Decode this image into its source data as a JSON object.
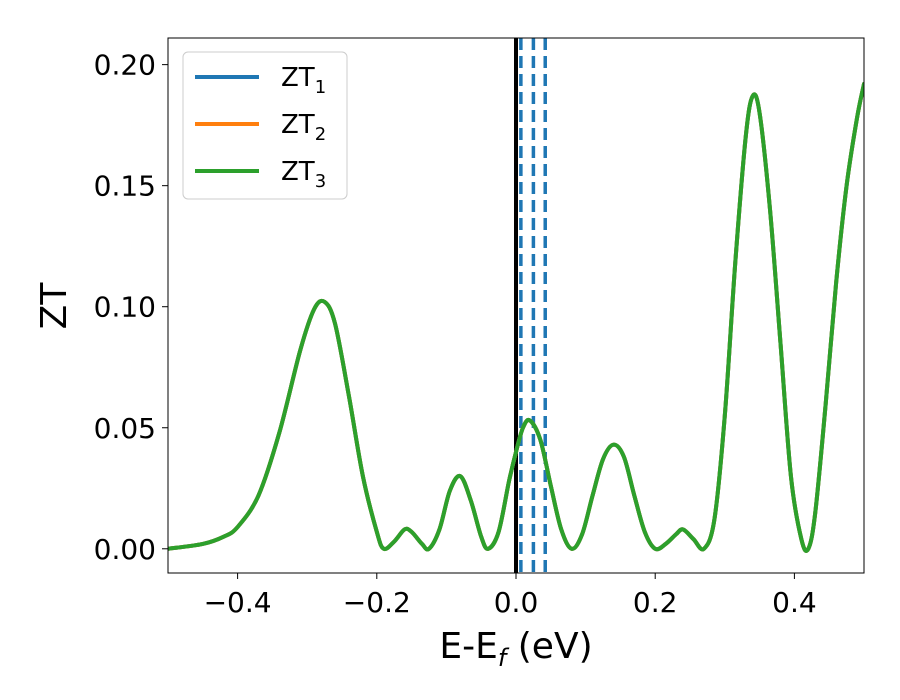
{
  "chart_data": {
    "type": "line",
    "xlabel": "E-E_f (eV)",
    "xlabel_parts": {
      "main": "E-E",
      "sub": "f",
      "tail": " (eV)"
    },
    "ylabel": "ZT",
    "xlim": [
      -0.5,
      0.5
    ],
    "ylim": [
      -0.01,
      0.211
    ],
    "xticks": [
      -0.4,
      -0.2,
      0.0,
      0.2,
      0.4
    ],
    "xtick_labels": [
      "−0.4",
      "−0.2",
      "0.0",
      "0.2",
      "0.4"
    ],
    "yticks": [
      0.0,
      0.05,
      0.1,
      0.15,
      0.2
    ],
    "ytick_labels": [
      "0.00",
      "0.05",
      "0.10",
      "0.15",
      "0.20"
    ],
    "legend_position": "top-left",
    "grid": false,
    "series": [
      {
        "name": "ZT_1",
        "label_main": "ZT",
        "label_sub": "1",
        "color": "#1f77b4",
        "x": [
          -0.5,
          -0.45,
          -0.42,
          -0.4,
          -0.37,
          -0.34,
          -0.31,
          -0.29,
          -0.275,
          -0.26,
          -0.24,
          -0.22,
          -0.2,
          -0.19,
          -0.175,
          -0.16,
          -0.15,
          -0.135,
          -0.125,
          -0.11,
          -0.095,
          -0.08,
          -0.065,
          -0.05,
          -0.04,
          -0.025,
          -0.01,
          0.0,
          0.01,
          0.02,
          0.035,
          0.05,
          0.065,
          0.08,
          0.095,
          0.11,
          0.125,
          0.14,
          0.155,
          0.17,
          0.185,
          0.2,
          0.215,
          0.23,
          0.24,
          0.255,
          0.27,
          0.285,
          0.3,
          0.315,
          0.33,
          0.34,
          0.35,
          0.365,
          0.38,
          0.395,
          0.41,
          0.42,
          0.43,
          0.445,
          0.46,
          0.475,
          0.49,
          0.5
        ],
        "y": [
          0.0,
          0.002,
          0.005,
          0.009,
          0.022,
          0.048,
          0.082,
          0.099,
          0.102,
          0.093,
          0.063,
          0.03,
          0.007,
          0.0,
          0.003,
          0.008,
          0.007,
          0.002,
          0.0,
          0.008,
          0.024,
          0.03,
          0.02,
          0.005,
          0.0,
          0.007,
          0.028,
          0.04,
          0.05,
          0.053,
          0.045,
          0.026,
          0.008,
          0.0,
          0.006,
          0.022,
          0.037,
          0.043,
          0.038,
          0.022,
          0.007,
          0.0,
          0.002,
          0.006,
          0.008,
          0.004,
          0.0,
          0.012,
          0.055,
          0.118,
          0.17,
          0.187,
          0.18,
          0.14,
          0.085,
          0.03,
          0.004,
          0.0,
          0.015,
          0.06,
          0.11,
          0.15,
          0.178,
          0.192
        ]
      },
      {
        "name": "ZT_2",
        "label_main": "ZT",
        "label_sub": "2",
        "color": "#ff7f0e",
        "x": [
          -0.5,
          -0.45,
          -0.42,
          -0.4,
          -0.37,
          -0.34,
          -0.31,
          -0.29,
          -0.275,
          -0.26,
          -0.24,
          -0.22,
          -0.2,
          -0.19,
          -0.175,
          -0.16,
          -0.15,
          -0.135,
          -0.125,
          -0.11,
          -0.095,
          -0.08,
          -0.065,
          -0.05,
          -0.04,
          -0.025,
          -0.01,
          0.0,
          0.01,
          0.02,
          0.035,
          0.05,
          0.065,
          0.08,
          0.095,
          0.11,
          0.125,
          0.14,
          0.155,
          0.17,
          0.185,
          0.2,
          0.215,
          0.23,
          0.24,
          0.255,
          0.27,
          0.285,
          0.3,
          0.315,
          0.33,
          0.34,
          0.35,
          0.365,
          0.38,
          0.395,
          0.41,
          0.42,
          0.43,
          0.445,
          0.46,
          0.475,
          0.49,
          0.5
        ],
        "y": [
          0.0,
          0.002,
          0.005,
          0.009,
          0.022,
          0.048,
          0.082,
          0.099,
          0.102,
          0.093,
          0.063,
          0.03,
          0.007,
          0.0,
          0.003,
          0.008,
          0.007,
          0.002,
          0.0,
          0.008,
          0.024,
          0.03,
          0.02,
          0.005,
          0.0,
          0.007,
          0.028,
          0.04,
          0.05,
          0.053,
          0.045,
          0.026,
          0.008,
          0.0,
          0.006,
          0.022,
          0.037,
          0.043,
          0.038,
          0.022,
          0.007,
          0.0,
          0.002,
          0.006,
          0.008,
          0.004,
          0.0,
          0.012,
          0.055,
          0.118,
          0.17,
          0.187,
          0.18,
          0.14,
          0.085,
          0.03,
          0.004,
          0.0,
          0.015,
          0.06,
          0.11,
          0.15,
          0.178,
          0.192
        ]
      },
      {
        "name": "ZT_3",
        "label_main": "ZT",
        "label_sub": "3",
        "color": "#2ca02c",
        "x": [
          -0.5,
          -0.45,
          -0.42,
          -0.4,
          -0.37,
          -0.34,
          -0.31,
          -0.29,
          -0.275,
          -0.26,
          -0.24,
          -0.22,
          -0.2,
          -0.19,
          -0.175,
          -0.16,
          -0.15,
          -0.135,
          -0.125,
          -0.11,
          -0.095,
          -0.08,
          -0.065,
          -0.05,
          -0.04,
          -0.025,
          -0.01,
          0.0,
          0.01,
          0.02,
          0.035,
          0.05,
          0.065,
          0.08,
          0.095,
          0.11,
          0.125,
          0.14,
          0.155,
          0.17,
          0.185,
          0.2,
          0.215,
          0.23,
          0.24,
          0.255,
          0.27,
          0.285,
          0.3,
          0.315,
          0.33,
          0.34,
          0.35,
          0.365,
          0.38,
          0.395,
          0.41,
          0.42,
          0.43,
          0.445,
          0.46,
          0.475,
          0.49,
          0.5
        ],
        "y": [
          0.0,
          0.002,
          0.005,
          0.009,
          0.022,
          0.048,
          0.082,
          0.099,
          0.102,
          0.093,
          0.063,
          0.03,
          0.007,
          0.0,
          0.003,
          0.008,
          0.007,
          0.002,
          0.0,
          0.008,
          0.024,
          0.03,
          0.02,
          0.005,
          0.0,
          0.007,
          0.028,
          0.04,
          0.05,
          0.053,
          0.045,
          0.026,
          0.008,
          0.0,
          0.006,
          0.022,
          0.037,
          0.043,
          0.038,
          0.022,
          0.007,
          0.0,
          0.002,
          0.006,
          0.008,
          0.004,
          0.0,
          0.012,
          0.055,
          0.118,
          0.17,
          0.187,
          0.18,
          0.14,
          0.085,
          0.03,
          0.004,
          0.0,
          0.015,
          0.06,
          0.11,
          0.15,
          0.178,
          0.192
        ]
      }
    ],
    "vertical_lines": [
      {
        "x": 0.0,
        "color": "#000000",
        "style": "solid"
      },
      {
        "x": 0.007,
        "color": "#1f77b4",
        "style": "dashed"
      },
      {
        "x": 0.025,
        "color": "#1f77b4",
        "style": "dashed"
      },
      {
        "x": 0.042,
        "color": "#1f77b4",
        "style": "dashed"
      }
    ]
  }
}
